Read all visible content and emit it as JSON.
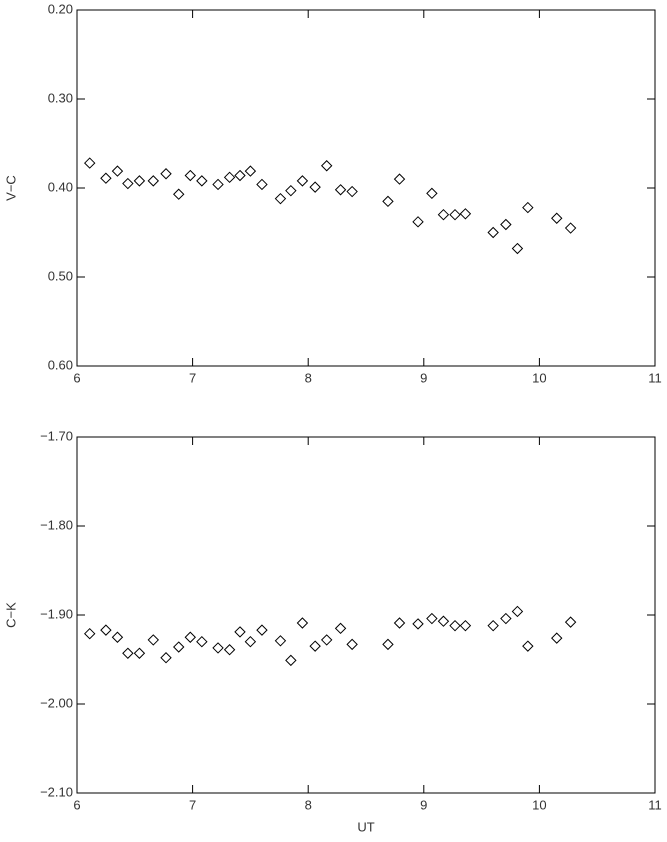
{
  "chart_data": [
    {
      "type": "scatter",
      "ylabel": "V−C",
      "marker": "diamond",
      "color": "#000000",
      "y_inverted": true,
      "xlim": [
        6,
        11
      ],
      "xticks": [
        6,
        7,
        8,
        9,
        10,
        11
      ],
      "ylim": [
        0.2,
        0.6
      ],
      "yticks": [
        {
          "value": 0.2,
          "label": "0.20"
        },
        {
          "value": 0.3,
          "label": "0.30"
        },
        {
          "value": 0.4,
          "label": "0.40"
        },
        {
          "value": 0.5,
          "label": "0.50"
        },
        {
          "value": 0.6,
          "label": "0.60"
        }
      ],
      "x": [
        6.11,
        6.25,
        6.35,
        6.44,
        6.54,
        6.66,
        6.77,
        6.88,
        6.98,
        7.08,
        7.22,
        7.32,
        7.41,
        7.5,
        7.6,
        7.76,
        7.85,
        7.95,
        8.06,
        8.16,
        8.28,
        8.38,
        8.69,
        8.79,
        8.95,
        9.07,
        9.17,
        9.27,
        9.36,
        9.6,
        9.71,
        9.81,
        9.9,
        10.15,
        10.27
      ],
      "values": [
        0.372,
        0.389,
        0.381,
        0.395,
        0.392,
        0.392,
        0.384,
        0.407,
        0.386,
        0.392,
        0.396,
        0.388,
        0.386,
        0.381,
        0.396,
        0.412,
        0.403,
        0.392,
        0.399,
        0.375,
        0.402,
        0.404,
        0.415,
        0.39,
        0.438,
        0.406,
        0.43,
        0.43,
        0.429,
        0.45,
        0.441,
        0.468,
        0.422,
        0.434,
        0.445
      ]
    },
    {
      "type": "scatter",
      "ylabel": "C−K",
      "xlabel": "UT",
      "marker": "diamond",
      "color": "#000000",
      "y_inverted": false,
      "xlim": [
        6,
        11
      ],
      "xticks": [
        6,
        7,
        8,
        9,
        10,
        11
      ],
      "ylim": [
        -2.1,
        -1.7
      ],
      "yticks": [
        {
          "value": -1.7,
          "label": "−1.70"
        },
        {
          "value": -1.8,
          "label": "−1.80"
        },
        {
          "value": -1.9,
          "label": "−1.90"
        },
        {
          "value": -2.0,
          "label": "−2.00"
        },
        {
          "value": -2.1,
          "label": "−2.10"
        }
      ],
      "x": [
        6.11,
        6.25,
        6.35,
        6.44,
        6.54,
        6.66,
        6.77,
        6.88,
        6.98,
        7.08,
        7.22,
        7.32,
        7.41,
        7.5,
        7.6,
        7.76,
        7.85,
        7.95,
        8.06,
        8.16,
        8.28,
        8.38,
        8.69,
        8.79,
        8.95,
        9.07,
        9.17,
        9.27,
        9.36,
        9.6,
        9.71,
        9.81,
        9.9,
        10.15,
        10.27
      ],
      "values": [
        -1.921,
        -1.917,
        -1.925,
        -1.943,
        -1.943,
        -1.928,
        -1.948,
        -1.936,
        -1.925,
        -1.93,
        -1.937,
        -1.939,
        -1.919,
        -1.93,
        -1.917,
        -1.929,
        -1.951,
        -1.909,
        -1.935,
        -1.928,
        -1.915,
        -1.933,
        -1.933,
        -1.909,
        -1.91,
        -1.904,
        -1.907,
        -1.912,
        -1.912,
        -1.912,
        -1.904,
        -1.896,
        -1.935,
        -1.926,
        -1.908
      ]
    }
  ]
}
